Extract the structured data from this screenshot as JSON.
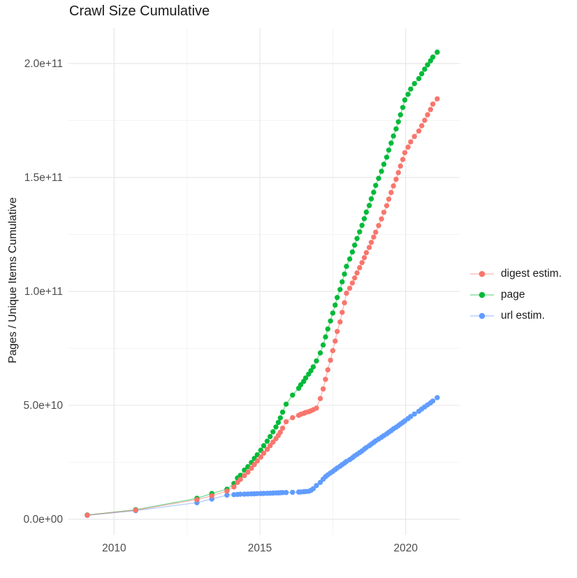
{
  "title": "Crawl Size Cumulative",
  "chart_data": {
    "type": "scatter",
    "title": "Crawl Size Cumulative",
    "xlabel": "",
    "ylabel": "Pages / Unique Items Cumulative",
    "legend_position": "right",
    "grid": true,
    "background": "#ffffff",
    "major_grid_color": "#e7e7e7",
    "minor_grid_color": "#f2f2f2",
    "tick_label_color": "#4d4d4d",
    "value_unit": "counts (values stored in billions, i.e. 1e9)",
    "x_domain": [
      2008.435,
      2021.85
    ],
    "y_domain_billions": [
      -6.75,
      215.6
    ],
    "x_ticks": [
      {
        "value": 2010,
        "label": "2010"
      },
      {
        "value": 2015,
        "label": "2015"
      },
      {
        "value": 2020,
        "label": "2020"
      }
    ],
    "x_minor_ticks": [
      2012.5,
      2017.5
    ],
    "y_ticks": [
      {
        "value": 0,
        "label": "0.0e+00"
      },
      {
        "value": 50,
        "label": "5.0e+10"
      },
      {
        "value": 100,
        "label": "1.0e+11"
      },
      {
        "value": 150,
        "label": "1.5e+11"
      },
      {
        "value": 200,
        "label": "2.0e+11"
      }
    ],
    "y_minor_ticks": [
      25,
      75,
      125,
      175
    ],
    "x": [
      2009.08,
      2010.74,
      2012.84,
      2013.35,
      2013.87,
      2014.11,
      2014.23,
      2014.33,
      2014.47,
      2014.59,
      2014.71,
      2014.81,
      2014.91,
      2015.03,
      2015.13,
      2015.25,
      2015.35,
      2015.45,
      2015.55,
      2015.63,
      2015.7,
      2015.78,
      2015.9,
      2016.12,
      2016.33,
      2016.4,
      2016.5,
      2016.57,
      2016.67,
      2016.75,
      2016.83,
      2016.94,
      2017.07,
      2017.17,
      2017.25,
      2017.33,
      2017.42,
      2017.5,
      2017.58,
      2017.65,
      2017.75,
      2017.82,
      2017.9,
      2017.97,
      2018.08,
      2018.17,
      2018.25,
      2018.33,
      2018.42,
      2018.5,
      2018.58,
      2018.65,
      2018.75,
      2018.82,
      2018.9,
      2018.97,
      2019.07,
      2019.17,
      2019.25,
      2019.35,
      2019.42,
      2019.5,
      2019.58,
      2019.67,
      2019.75,
      2019.82,
      2019.9,
      2019.97,
      2020.08,
      2020.17,
      2020.3,
      2020.45,
      2020.55,
      2020.65,
      2020.75,
      2020.85,
      2020.93,
      2021.08
    ],
    "series": [
      {
        "name": "digest estim.",
        "color": "#F8766D",
        "values_billions": [
          1.8,
          4.0,
          8.6,
          10.3,
          12.4,
          14.2,
          16.2,
          17.5,
          19.2,
          20.7,
          22.4,
          24.0,
          25.6,
          27.3,
          29.0,
          30.7,
          32.3,
          33.9,
          35.4,
          36.8,
          38.2,
          40.0,
          42.8,
          44.6,
          45.6,
          46.1,
          46.5,
          46.9,
          47.2,
          47.6,
          48.1,
          48.8,
          53.0,
          57.2,
          61.4,
          65.6,
          69.8,
          74.0,
          78.2,
          82.4,
          86.6,
          90.8,
          95.0,
          99.2,
          101.4,
          103.7,
          105.9,
          108.1,
          110.4,
          112.6,
          114.8,
          117.0,
          119.3,
          121.5,
          123.8,
          126.0,
          128.9,
          131.8,
          134.7,
          137.6,
          140.5,
          143.4,
          146.3,
          149.2,
          152.1,
          155.0,
          157.9,
          160.9,
          163.3,
          165.6,
          168.0,
          170.4,
          172.7,
          175.1,
          177.5,
          179.8,
          182.2,
          184.5
        ]
      },
      {
        "name": "page",
        "color": "#00BA38",
        "values_billions": [
          1.9,
          4.2,
          9.2,
          11.3,
          13.2,
          15.7,
          18.1,
          19.3,
          21.6,
          23.1,
          24.9,
          26.7,
          28.3,
          30.3,
          32.3,
          34.3,
          36.3,
          38.4,
          40.5,
          42.5,
          44.5,
          47.0,
          50.5,
          54.5,
          57.5,
          59.0,
          60.5,
          62.0,
          63.7,
          65.2,
          66.9,
          69.5,
          73.0,
          76.5,
          80.0,
          83.5,
          87.0,
          90.5,
          94.0,
          97.3,
          100.8,
          104.2,
          107.6,
          111.0,
          114.2,
          117.3,
          120.3,
          123.2,
          126.1,
          129.0,
          131.9,
          134.8,
          137.7,
          140.6,
          143.5,
          146.5,
          149.6,
          152.7,
          155.8,
          158.9,
          162.0,
          165.1,
          168.2,
          171.3,
          174.4,
          177.5,
          180.7,
          184.0,
          186.5,
          188.8,
          191.2,
          193.4,
          195.5,
          197.5,
          199.4,
          201.2,
          202.8,
          205.0
        ]
      },
      {
        "name": "url estim.",
        "color": "#619CFF",
        "values_billions": [
          1.7,
          3.8,
          7.3,
          8.9,
          10.6,
          10.8,
          10.9,
          11.0,
          11.05,
          11.1,
          11.15,
          11.2,
          11.25,
          11.3,
          11.35,
          11.4,
          11.45,
          11.5,
          11.55,
          11.6,
          11.65,
          11.7,
          11.75,
          11.85,
          11.95,
          12.0,
          12.1,
          12.2,
          12.3,
          12.7,
          13.4,
          14.8,
          16.2,
          17.6,
          18.7,
          19.5,
          20.3,
          21.0,
          21.8,
          22.5,
          23.3,
          24.0,
          24.7,
          25.4,
          26.2,
          27.0,
          27.8,
          28.5,
          29.3,
          30.0,
          30.8,
          31.5,
          32.3,
          33.0,
          33.7,
          34.4,
          35.2,
          36.0,
          36.7,
          37.5,
          38.2,
          38.9,
          39.7,
          40.4,
          41.1,
          41.8,
          42.5,
          43.2,
          44.2,
          45.1,
          46.2,
          47.4,
          48.4,
          49.3,
          50.2,
          51.1,
          51.9,
          53.4
        ]
      }
    ]
  }
}
